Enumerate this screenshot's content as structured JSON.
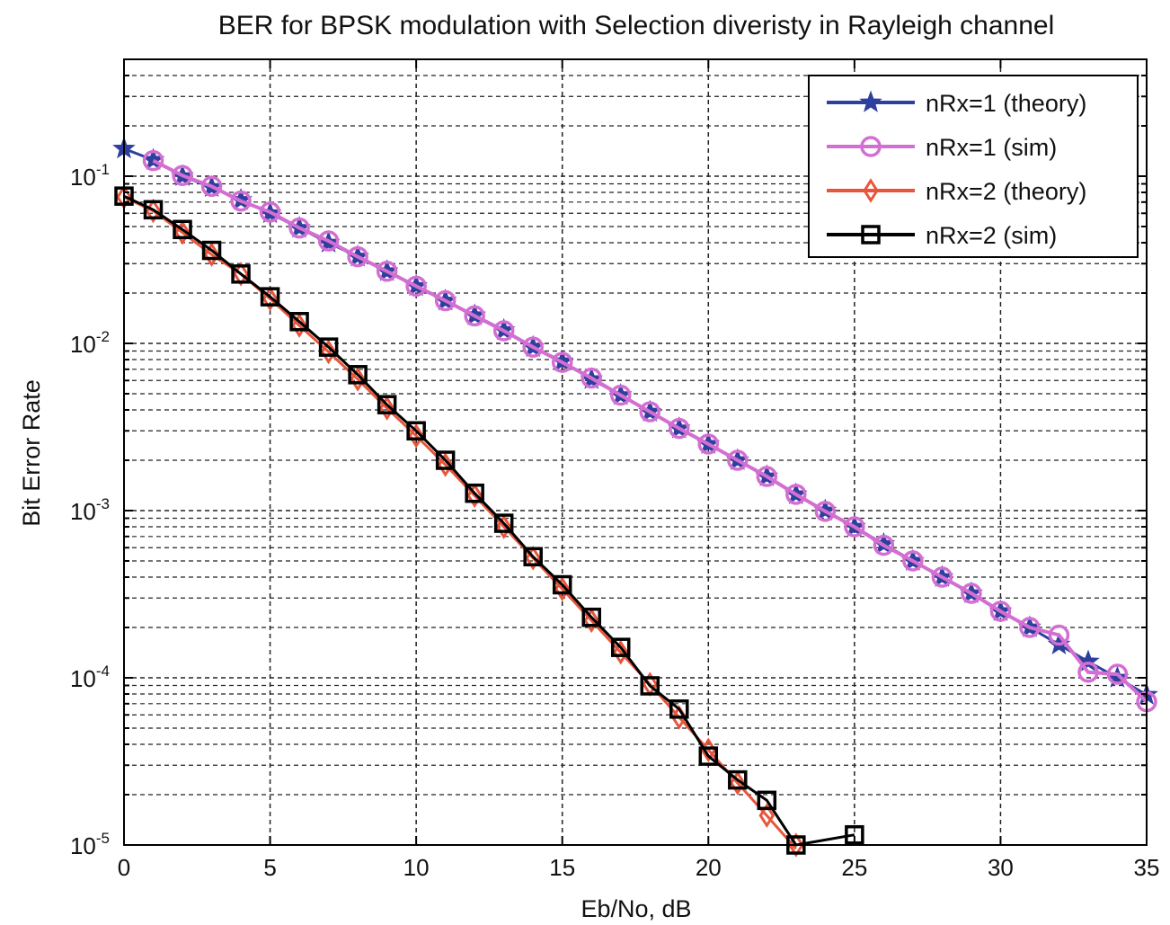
{
  "chart_data": {
    "type": "line",
    "title": "BER for BPSK modulation with Selection diveristy in Rayleigh channel",
    "xlabel": "Eb/No, dB",
    "ylabel": "Bit Error Rate",
    "xlim": [
      0,
      35
    ],
    "ylim": [
      1e-05,
      0.5
    ],
    "yscale": "log",
    "grid": true,
    "legend_position": "top-right",
    "x_ticks": [
      0,
      5,
      10,
      15,
      20,
      25,
      30,
      35
    ],
    "x_tick_labels": [
      "0",
      "5",
      "10",
      "15",
      "20",
      "25",
      "30",
      "35"
    ],
    "y_ticks": [
      1e-05,
      0.0001,
      0.001,
      0.01,
      0.1
    ],
    "y_tick_labels": [
      {
        "base": "10",
        "exp": "-5"
      },
      {
        "base": "10",
        "exp": "-4"
      },
      {
        "base": "10",
        "exp": "-3"
      },
      {
        "base": "10",
        "exp": "-2"
      },
      {
        "base": "10",
        "exp": "-1"
      }
    ],
    "series": [
      {
        "name": "nRx=1 (theory)",
        "color": "#2e3f9e",
        "marker": "star",
        "x": [
          0,
          1,
          2,
          3,
          4,
          5,
          6,
          7,
          8,
          9,
          10,
          11,
          12,
          13,
          14,
          15,
          16,
          17,
          18,
          19,
          20,
          21,
          22,
          23,
          24,
          25,
          26,
          27,
          28,
          29,
          30,
          31,
          32,
          33,
          34,
          35
        ],
        "y": [
          0.146,
          0.125,
          0.1,
          0.086,
          0.072,
          0.06,
          0.049,
          0.04,
          0.033,
          0.027,
          0.022,
          0.018,
          0.0147,
          0.012,
          0.0095,
          0.0078,
          0.0061,
          0.0049,
          0.0039,
          0.0031,
          0.0025,
          0.002,
          0.0016,
          0.00125,
          0.001,
          0.0008,
          0.00063,
          0.0005,
          0.0004,
          0.00032,
          0.00025,
          0.0002,
          0.000158,
          0.000125,
          0.0001,
          7.9e-05
        ]
      },
      {
        "name": "nRx=1 (sim)",
        "color": "#d36ed3",
        "marker": "circle",
        "x": [
          1,
          2,
          3,
          4,
          5,
          6,
          7,
          8,
          9,
          10,
          11,
          12,
          13,
          14,
          15,
          16,
          17,
          18,
          19,
          20,
          21,
          22,
          23,
          24,
          25,
          26,
          27,
          28,
          29,
          30,
          31,
          32,
          33,
          34,
          35
        ],
        "y": [
          0.124,
          0.101,
          0.087,
          0.071,
          0.061,
          0.049,
          0.041,
          0.033,
          0.027,
          0.022,
          0.018,
          0.0146,
          0.0119,
          0.0095,
          0.0077,
          0.0062,
          0.0049,
          0.0039,
          0.0031,
          0.0025,
          0.002,
          0.0016,
          0.00125,
          0.00099,
          0.0008,
          0.00062,
          0.0005,
          0.0004,
          0.00032,
          0.00025,
          0.0002,
          0.00018,
          0.000108,
          0.000105,
          7.2e-05
        ]
      },
      {
        "name": "nRx=2 (theory)",
        "color": "#e8553a",
        "marker": "diamond",
        "x": [
          0,
          1,
          2,
          3,
          4,
          5,
          6,
          7,
          8,
          9,
          10,
          11,
          12,
          13,
          14,
          15,
          16,
          17,
          18,
          19,
          20,
          21,
          22,
          23
        ],
        "y": [
          0.075,
          0.062,
          0.046,
          0.034,
          0.026,
          0.0185,
          0.0128,
          0.0089,
          0.0061,
          0.0041,
          0.0028,
          0.00188,
          0.00123,
          0.0008,
          0.00052,
          0.00034,
          0.00022,
          0.000142,
          9.15e-05,
          5.8e-05,
          3.7e-05,
          2.35e-05,
          1.5e-05,
          9.5e-06
        ]
      },
      {
        "name": "nRx=2 (sim)",
        "color": "#000000",
        "marker": "square",
        "x": [
          0,
          1,
          2,
          3,
          4,
          5,
          6,
          7,
          8,
          9,
          10,
          11,
          12,
          13,
          14,
          15,
          16,
          17,
          18,
          19,
          20,
          21,
          22,
          23,
          25
        ],
        "y": [
          0.076,
          0.063,
          0.048,
          0.036,
          0.026,
          0.019,
          0.0135,
          0.0095,
          0.0065,
          0.0043,
          0.003,
          0.002,
          0.00127,
          0.00084,
          0.00053,
          0.00036,
          0.00023,
          0.000152,
          8.95e-05,
          6.5e-05,
          3.4e-05,
          2.45e-05,
          1.85e-05,
          1e-05,
          1.15e-05
        ]
      }
    ]
  }
}
